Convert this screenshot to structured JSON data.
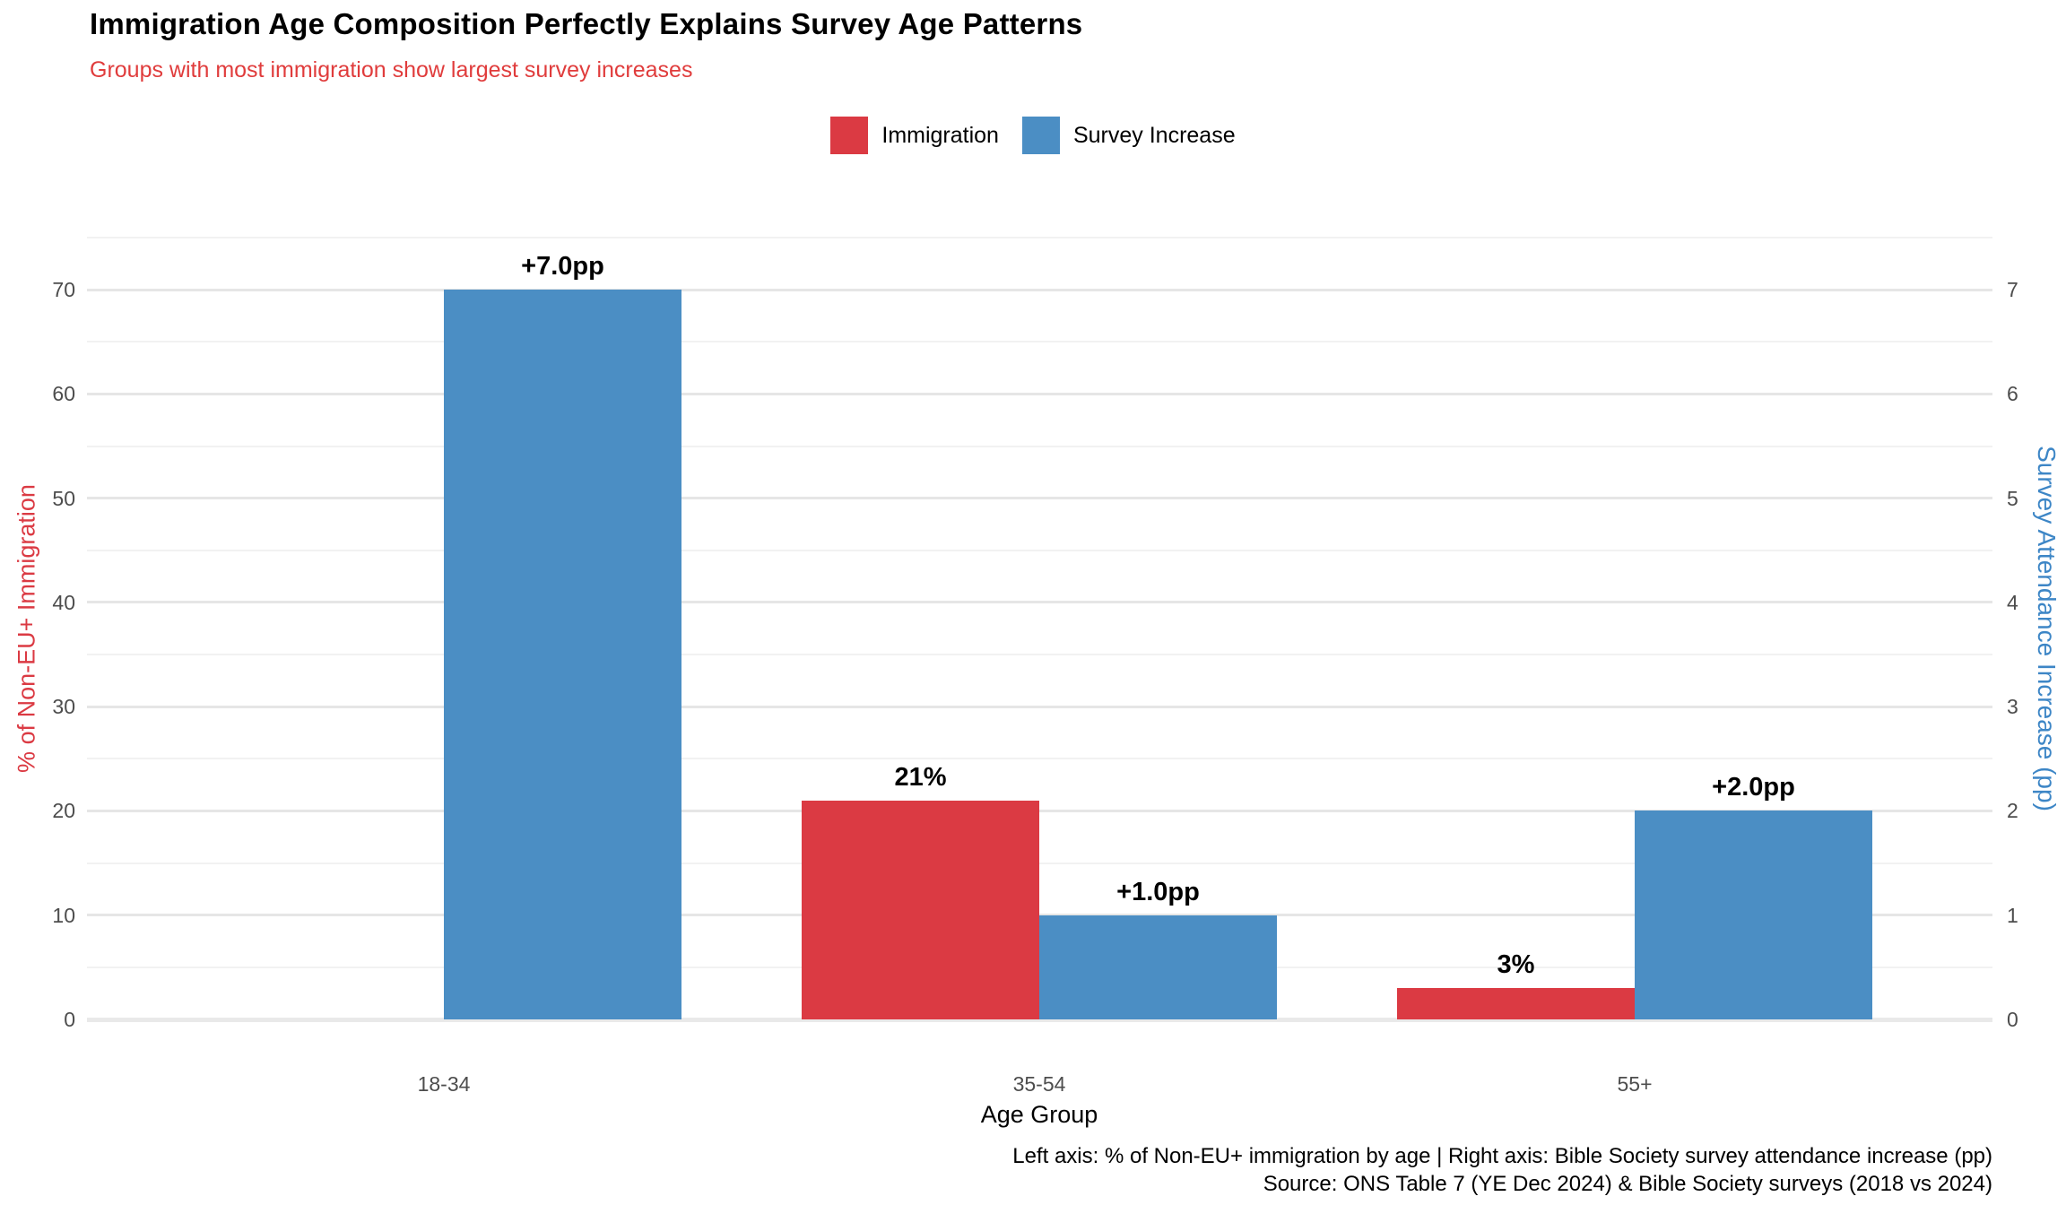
{
  "header": {
    "title": "Immigration Age Composition Perfectly Explains Survey Age Patterns",
    "subtitle": "Groups with most immigration show largest survey increases"
  },
  "legend": {
    "items": [
      {
        "label": "Immigration",
        "color": "#db3a43"
      },
      {
        "label": "Survey Increase",
        "color": "#4b8ec4"
      }
    ]
  },
  "chart_data": {
    "type": "bar",
    "categories": [
      "18-34",
      "35-54",
      "55+"
    ],
    "series": [
      {
        "name": "Immigration",
        "axis": "left",
        "color": "#db3a43",
        "values": [
          null,
          21,
          3
        ],
        "labels": [
          "",
          "21%",
          "3%"
        ]
      },
      {
        "name": "Survey Increase",
        "axis": "right",
        "color": "#4b8ec4",
        "values": [
          7.0,
          1.0,
          2.0
        ],
        "labels": [
          "+7.0pp",
          "+1.0pp",
          "+2.0pp"
        ]
      }
    ],
    "left_axis": {
      "title": "% of Non-EU+ Immigration",
      "color": "#db3a43",
      "ticks": [
        0,
        10,
        20,
        30,
        40,
        50,
        60,
        70
      ],
      "minor_step": 5,
      "ylim": [
        0,
        75
      ]
    },
    "right_axis": {
      "title": "Survey Attendance Increase (pp)",
      "color": "#3d86c6",
      "ticks": [
        0,
        1,
        2,
        3,
        4,
        5,
        6,
        7
      ],
      "ylim": [
        0,
        7.5
      ]
    },
    "x_axis": {
      "title": "Age Group"
    },
    "grid": true,
    "legend_position": "top-center"
  },
  "footer": {
    "caption_line1": "Left axis: % of Non-EU+ immigration by age | Right axis: Bible Society survey attendance increase (pp)",
    "caption_line2": "Source: ONS Table 7 (YE Dec 2024) & Bible Society surveys (2018 vs 2024)"
  }
}
